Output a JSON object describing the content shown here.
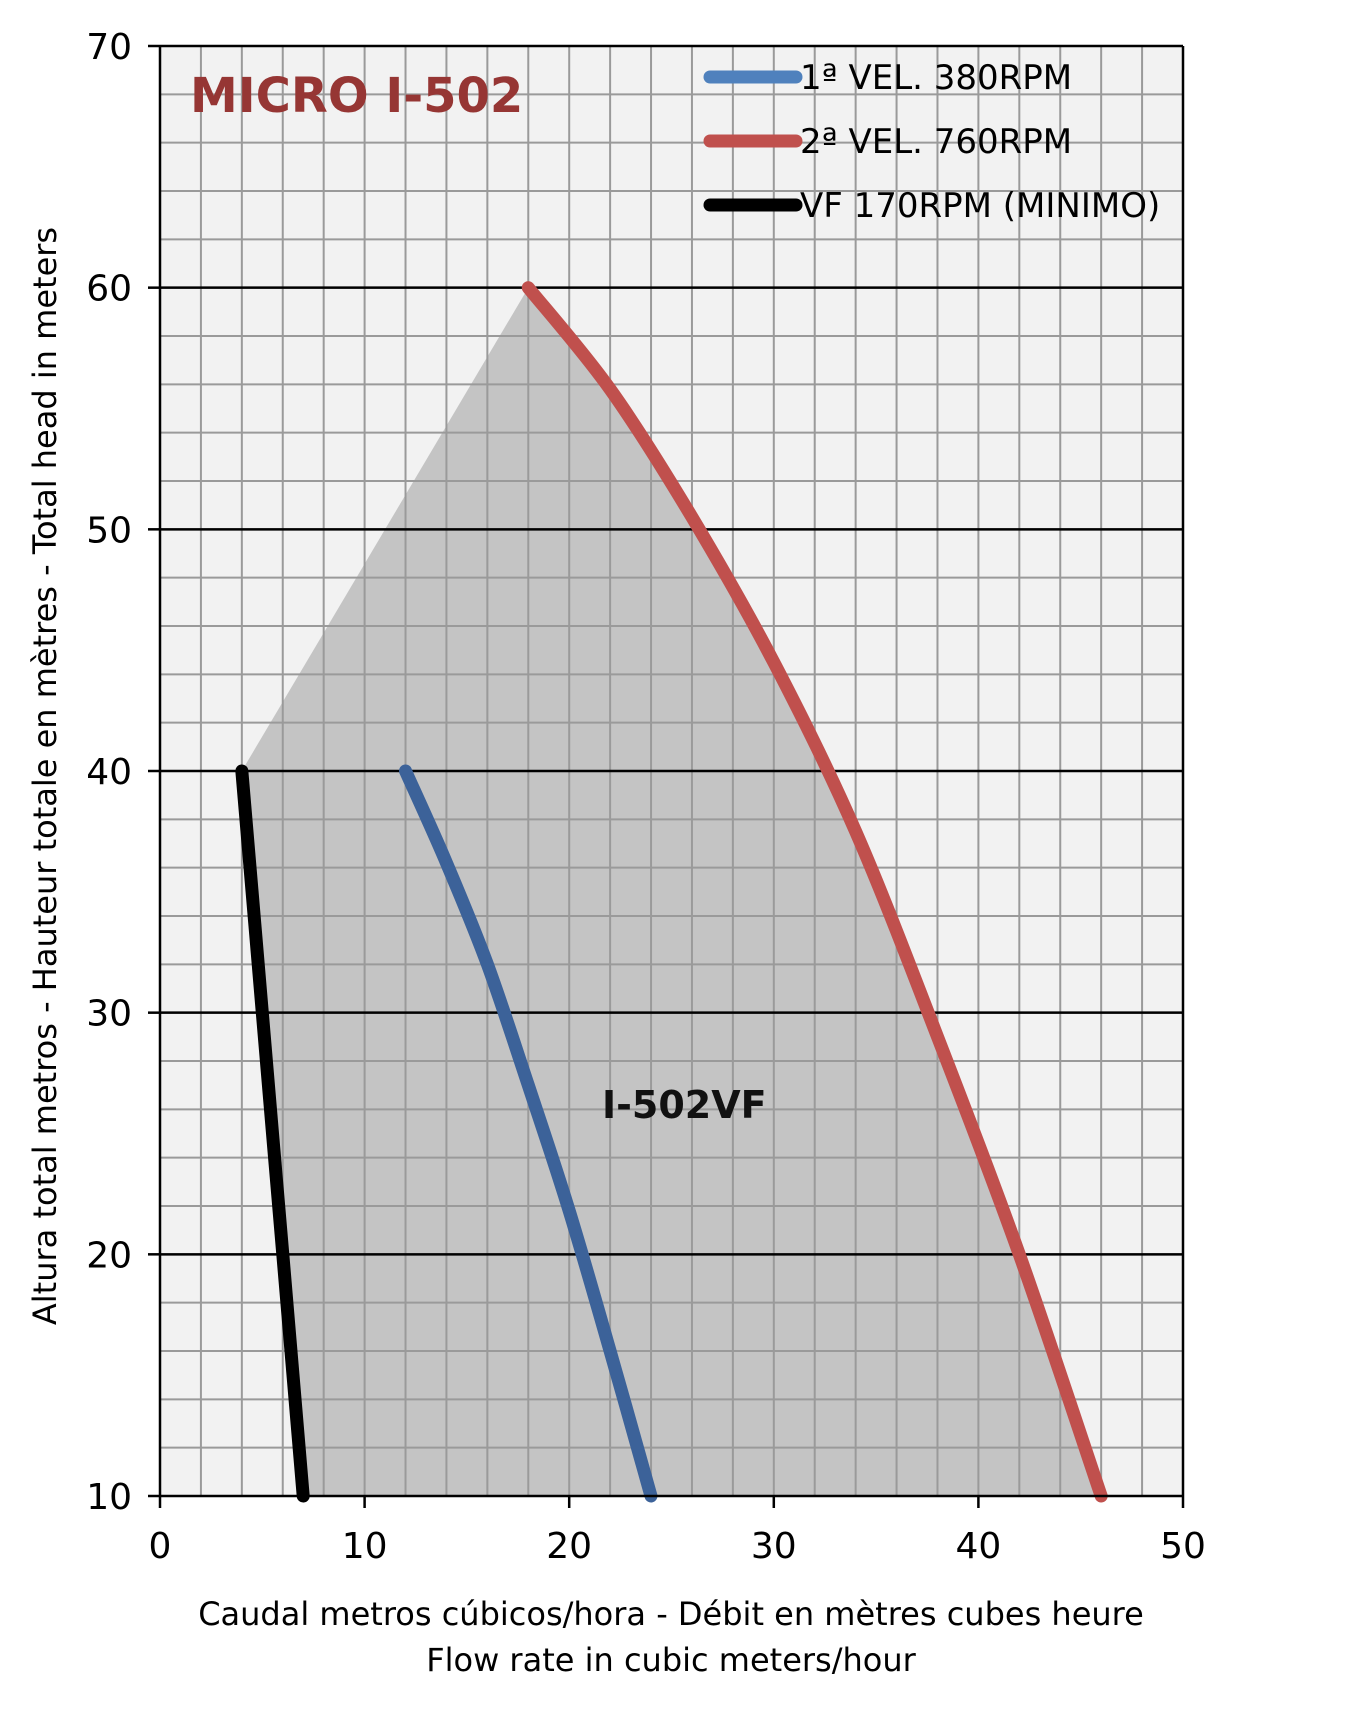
{
  "chart_data": {
    "type": "line",
    "title": "MICRO I-502",
    "annotation": "I-502VF",
    "xlabel": [
      "Caudal metros cúbicos/hora - Débit en mètres cubes heure",
      "Flow rate in cubic meters/hour"
    ],
    "ylabel": "Altura total metros - Hauteur totale en mètres - Total head in meters",
    "xlim": [
      0,
      50
    ],
    "ylim": [
      10,
      70
    ],
    "x_ticks": [
      0,
      10,
      20,
      30,
      40,
      50
    ],
    "y_ticks": [
      10,
      20,
      30,
      40,
      50,
      60,
      70
    ],
    "x_tick_labels": [
      "0",
      "10",
      "20",
      "30",
      "40",
      "50"
    ],
    "y_tick_labels": [
      "10",
      "20",
      "30",
      "40",
      "50",
      "60",
      "70"
    ],
    "grid": true,
    "legend_position": "top-right",
    "colors": {
      "plot_background": "#f2f2f2",
      "shaded_region": "#c4c4c4",
      "title": "#963634",
      "minor_grid": "#9a9a9a",
      "major_grid": "#000000"
    },
    "shaded_region": [
      [
        4,
        40
      ],
      [
        18,
        60
      ],
      [
        23,
        54.5
      ],
      [
        28,
        48
      ],
      [
        33,
        39.5
      ],
      [
        38,
        29
      ],
      [
        42,
        20
      ],
      [
        46,
        10
      ],
      [
        7,
        10
      ]
    ],
    "series": [
      {
        "name": "1ª VEL. 380RPM",
        "color": "#3c6299",
        "legend_color": "#4f81bd",
        "x": [
          12,
          14,
          16,
          18,
          20,
          22,
          24
        ],
        "y": [
          40,
          36.2,
          32,
          27,
          21.8,
          16,
          10
        ]
      },
      {
        "name": "2ª VEL. 760RPM",
        "color": "#c0504d",
        "legend_color": "#c0504d",
        "x": [
          18,
          22,
          26,
          30,
          34,
          38,
          42,
          46
        ],
        "y": [
          60,
          55.8,
          50.5,
          44.5,
          37.5,
          29,
          20,
          10
        ]
      },
      {
        "name": "VF 170RPM (MINIMO)",
        "color": "#000000",
        "legend_color": "#000000",
        "x": [
          4,
          5,
          6,
          7
        ],
        "y": [
          40,
          30,
          20,
          10
        ]
      }
    ]
  }
}
